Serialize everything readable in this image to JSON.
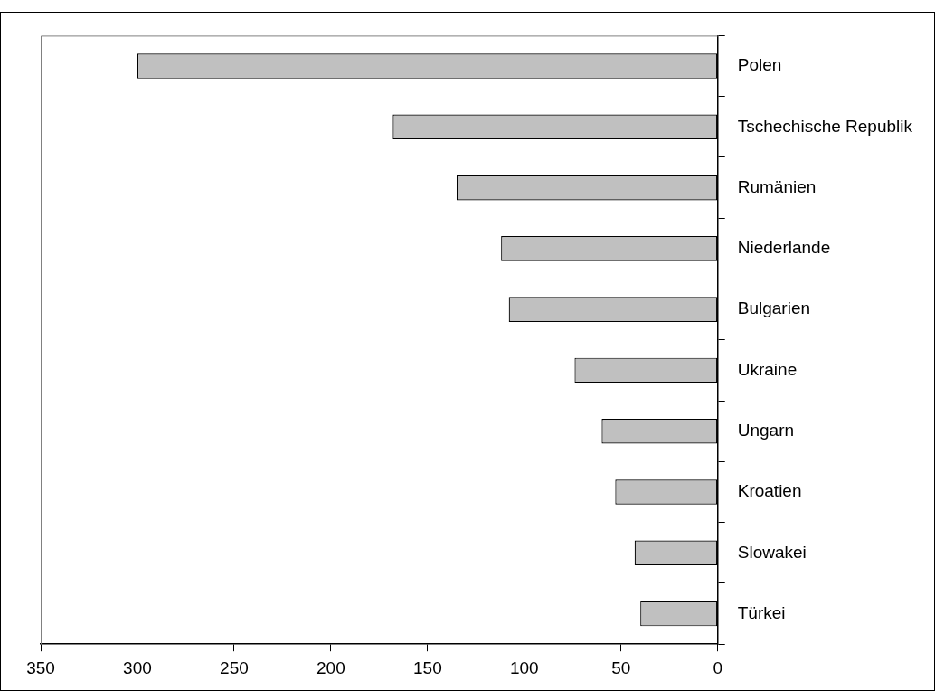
{
  "chart_data": {
    "type": "bar",
    "orientation": "horizontal",
    "categories": [
      "Polen",
      "Tschechische Republik",
      "Rumänien",
      "Niederlande",
      "Bulgarien",
      "Ukraine",
      "Ungarn",
      "Kroatien",
      "Slowakei",
      "Türkei"
    ],
    "values": [
      300,
      168,
      135,
      112,
      108,
      74,
      60,
      53,
      43,
      40
    ],
    "color": "#c0c0c0",
    "xlim": [
      350,
      0
    ],
    "xticks": [
      350,
      300,
      250,
      200,
      150,
      100,
      50,
      0
    ],
    "grid": false,
    "legend": false
  }
}
